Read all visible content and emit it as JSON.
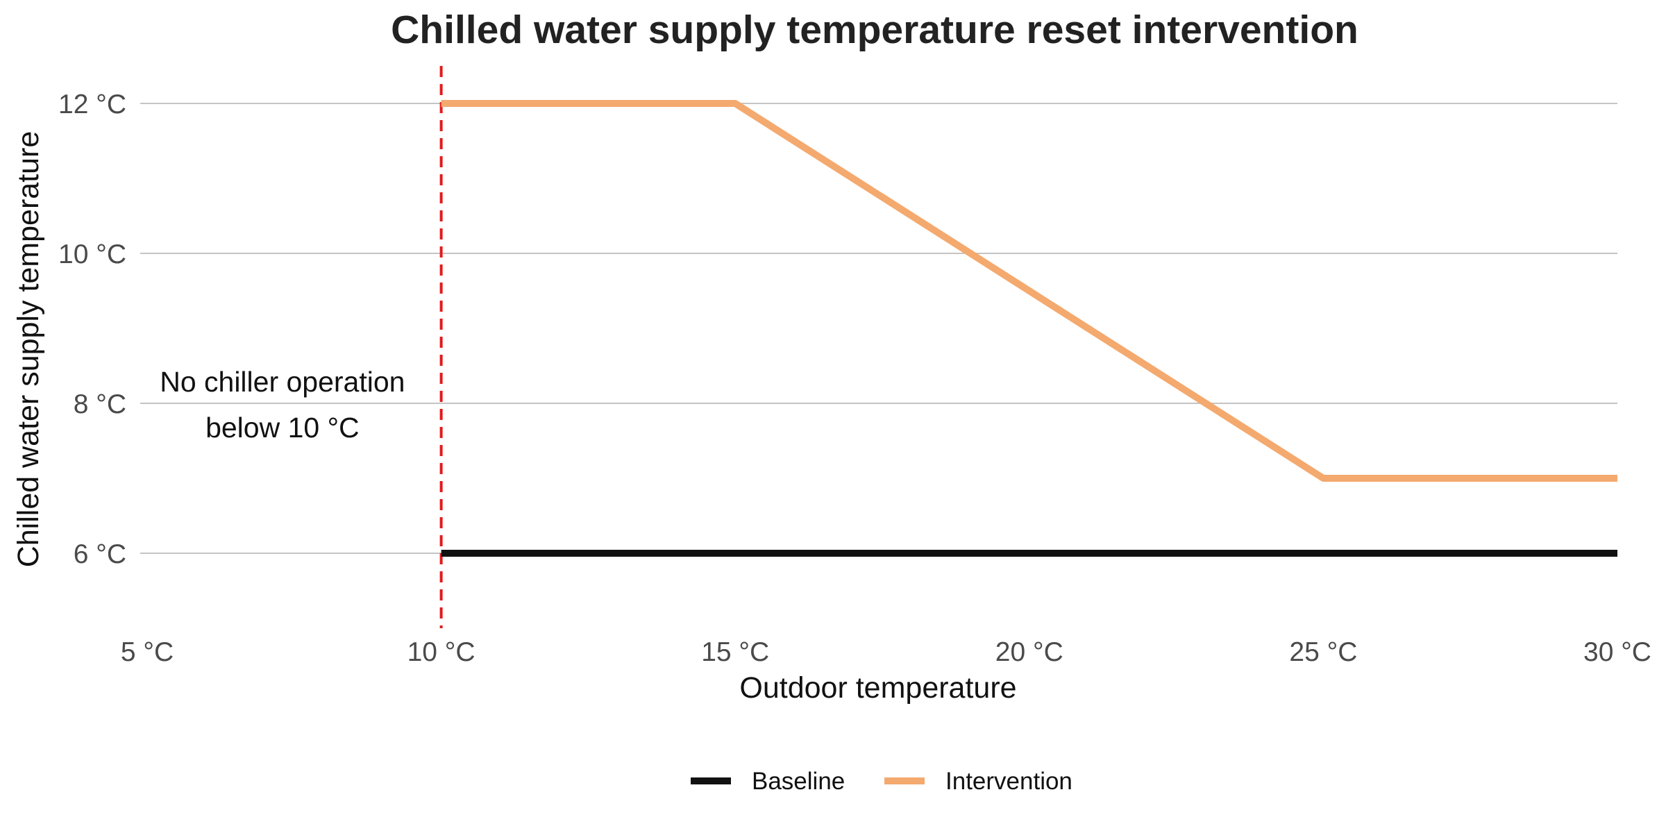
{
  "chart_data": {
    "type": "line",
    "title": "Chilled water supply temperature reset intervention",
    "xlabel": "Outdoor temperature",
    "ylabel": "Chilled water supply temperature",
    "xlim": [
      5,
      30
    ],
    "ylim": [
      5,
      12.5
    ],
    "x_ticks": [
      {
        "value": 5,
        "label": "5 °C"
      },
      {
        "value": 10,
        "label": "10 °C"
      },
      {
        "value": 15,
        "label": "15 °C"
      },
      {
        "value": 20,
        "label": "20 °C"
      },
      {
        "value": 25,
        "label": "25 °C"
      },
      {
        "value": 30,
        "label": "30 °C"
      }
    ],
    "y_ticks": [
      {
        "value": 6,
        "label": "6 °C"
      },
      {
        "value": 8,
        "label": "8 °C"
      },
      {
        "value": 10,
        "label": "10 °C"
      },
      {
        "value": 12,
        "label": "12 °C"
      }
    ],
    "grid": {
      "horizontal": true,
      "vertical": false
    },
    "legend_position": "bottom",
    "series": [
      {
        "name": "Baseline",
        "color": "#111111",
        "x": [
          10,
          30
        ],
        "y": [
          6,
          6
        ]
      },
      {
        "name": "Intervention",
        "color": "#f4a96e",
        "x": [
          10,
          15,
          25,
          30
        ],
        "y": [
          12,
          12,
          7,
          7
        ]
      }
    ],
    "reference_line": {
      "orientation": "vertical",
      "x": 10,
      "color": "#e31a1c",
      "style": "dashed"
    },
    "annotation": {
      "lines": [
        "No chiller operation",
        "below 10 °C"
      ],
      "x": 7.3,
      "y": 8
    }
  }
}
